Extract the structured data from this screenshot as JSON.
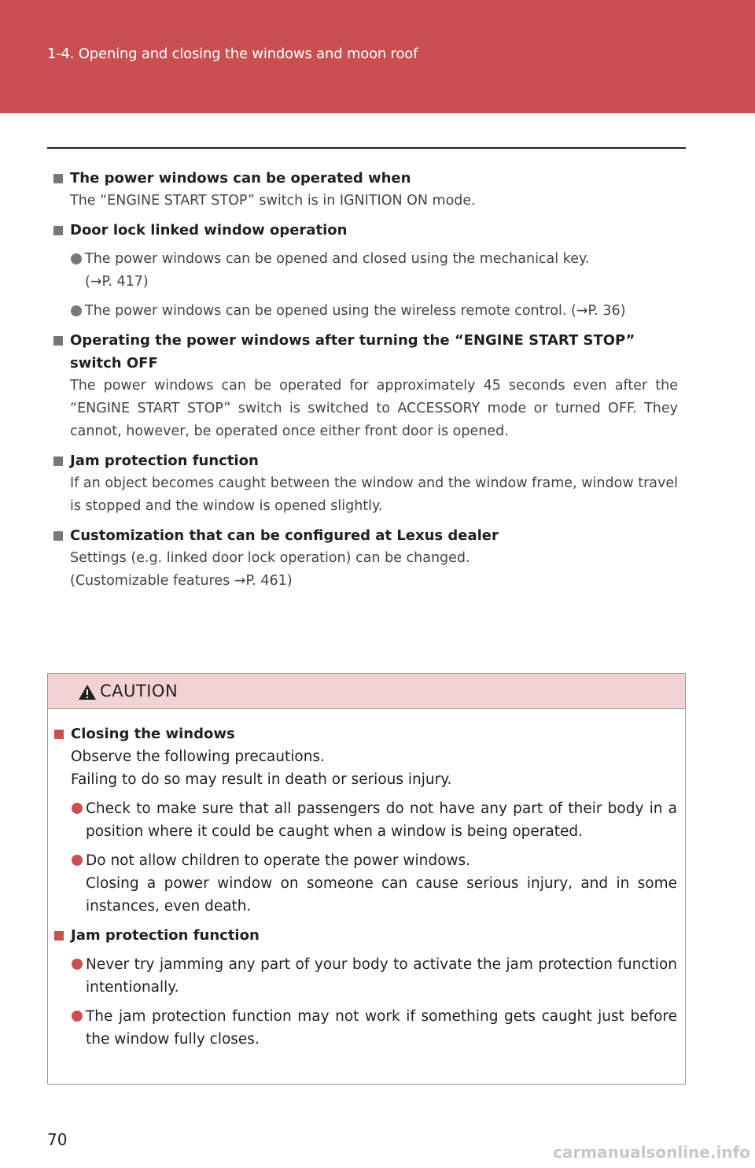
{
  "header": {
    "section": "1-4. Opening and closing the windows and moon roof"
  },
  "sections": [
    {
      "heading": "The power windows can be operated when",
      "paragraphs": [
        "The “ENGINE START STOP” switch is in IGNITION ON mode."
      ],
      "bullets": []
    },
    {
      "heading": "Door lock linked window operation",
      "paragraphs": [],
      "bullets": [
        [
          "The power windows can be opened and closed using the mechanical key.",
          "(→P. 417)"
        ],
        [
          "The power windows can be opened using the wireless remote control. (→P. 36)"
        ]
      ]
    },
    {
      "heading": "Operating the power windows after turning the “ENGINE START STOP” switch OFF",
      "paragraphs": [
        "The power windows can be operated for approximately 45 seconds even after the “ENGINE START STOP” switch is switched to ACCESSORY mode or turned OFF. They cannot, however, be operated once either front door is opened."
      ],
      "bullets": []
    },
    {
      "heading": "Jam protection function",
      "paragraphs": [
        "If an object becomes caught between the window and the window frame, window travel is stopped and the window is opened slightly."
      ],
      "bullets": []
    },
    {
      "heading": "Customization that can be configured at Lexus dealer",
      "paragraphs": [
        "Settings (e.g. linked door lock operation) can be changed.",
        "(Customizable features →P. 461)"
      ],
      "bullets": []
    }
  ],
  "caution": {
    "title": "CAUTION",
    "sections": [
      {
        "heading": "Closing the windows",
        "paragraphs": [
          "Observe the following precautions.",
          "Failing to do so may result in death or serious injury."
        ],
        "bullets": [
          [
            "Check to make sure that all passengers do not have any part of their body in a position where it could be caught when a window is being operated."
          ],
          [
            "Do not allow children to operate the power windows.",
            "Closing a power window on someone can cause serious injury, and in some instances, even death."
          ]
        ]
      },
      {
        "heading": "Jam protection function",
        "paragraphs": [],
        "bullets": [
          [
            "Never try jamming any part of your body to activate the jam protection function intentionally."
          ],
          [
            "The jam protection function may not work if something gets caught just before the window fully closes."
          ]
        ]
      }
    ]
  },
  "footer": {
    "page_number": "70",
    "watermark": "carmanualsonline.info"
  }
}
